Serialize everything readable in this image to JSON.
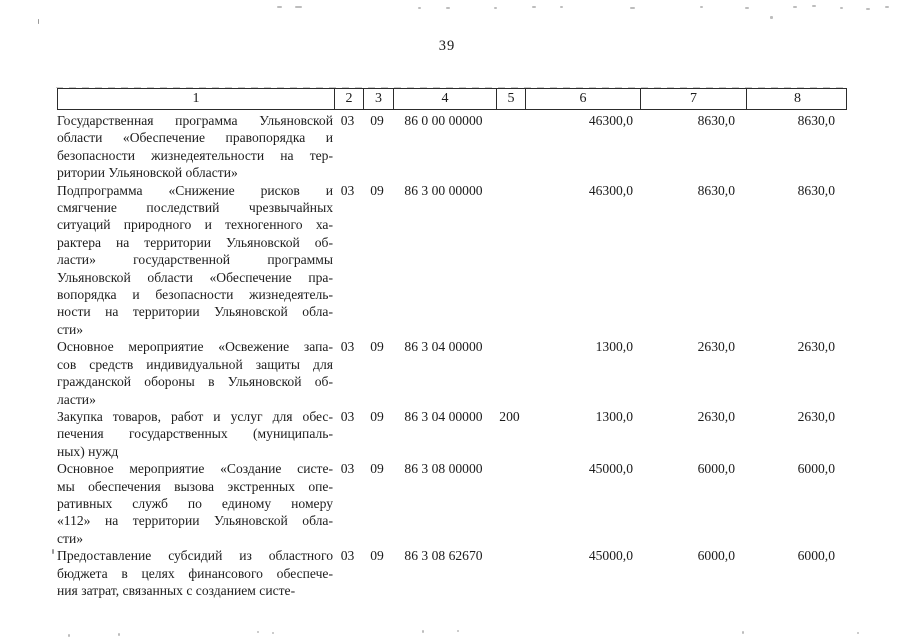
{
  "page": {
    "number": "39"
  },
  "table": {
    "header_labels": [
      "1",
      "2",
      "3",
      "4",
      "5",
      "6",
      "7",
      "8"
    ],
    "rows": [
      {
        "lines": [
          "Государственная программа Ульяновской",
          "области «Обеспечение правопорядка и",
          "безопасности жизнедеятельности на тер-",
          "ритории Ульяновской области»"
        ],
        "col2": "03",
        "col3": "09",
        "col4": "86 0 00 00000",
        "col5": "",
        "col6": "46300,0",
        "col7": "8630,0",
        "col8": "8630,0"
      },
      {
        "lines": [
          "Подпрограмма «Снижение рисков и",
          "смягчение последствий чрезвычайных",
          "ситуаций природного и техногенного ха-",
          "рактера на территории Ульяновской об-",
          "ласти» государственной программы",
          "Ульяновской области «Обеспечение пра-",
          "вопорядка и безопасности жизнедеятель-",
          "ности на территории Ульяновской обла-",
          "сти»"
        ],
        "col2": "03",
        "col3": "09",
        "col4": "86 3 00 00000",
        "col5": "",
        "col6": "46300,0",
        "col7": "8630,0",
        "col8": "8630,0"
      },
      {
        "lines": [
          "Основное мероприятие «Освежение запа-",
          "сов средств индивидуальной защиты для",
          "гражданской обороны в Ульяновской об-",
          "ласти»"
        ],
        "col2": "03",
        "col3": "09",
        "col4": "86 3 04 00000",
        "col5": "",
        "col6": "1300,0",
        "col7": "2630,0",
        "col8": "2630,0"
      },
      {
        "lines": [
          "Закупка товаров, работ и услуг для обес-",
          "печения государственных (муниципаль-",
          "ных) нужд"
        ],
        "col2": "03",
        "col3": "09",
        "col4": "86 3 04 00000",
        "col5": "200",
        "col6": "1300,0",
        "col7": "2630,0",
        "col8": "2630,0"
      },
      {
        "lines": [
          "Основное мероприятие «Создание систе-",
          "мы обеспечения вызова экстренных опе-",
          "ративных служб по единому номеру",
          "«112» на территории Ульяновской обла-",
          "сти»"
        ],
        "col2": "03",
        "col3": "09",
        "col4": "86 3 08 00000",
        "col5": "",
        "col6": "45000,0",
        "col7": "6000,0",
        "col8": "6000,0"
      },
      {
        "lines": [
          "Предоставление субсидий из областного",
          "бюджета в целях финансового обеспече-",
          "ния затрат, связанных с созданием систе-"
        ],
        "col2": "03",
        "col3": "09",
        "col4": "86 3 08 62670",
        "col5": "",
        "col6": "45000,0",
        "col7": "6000,0",
        "col8": "6000,0"
      }
    ]
  }
}
